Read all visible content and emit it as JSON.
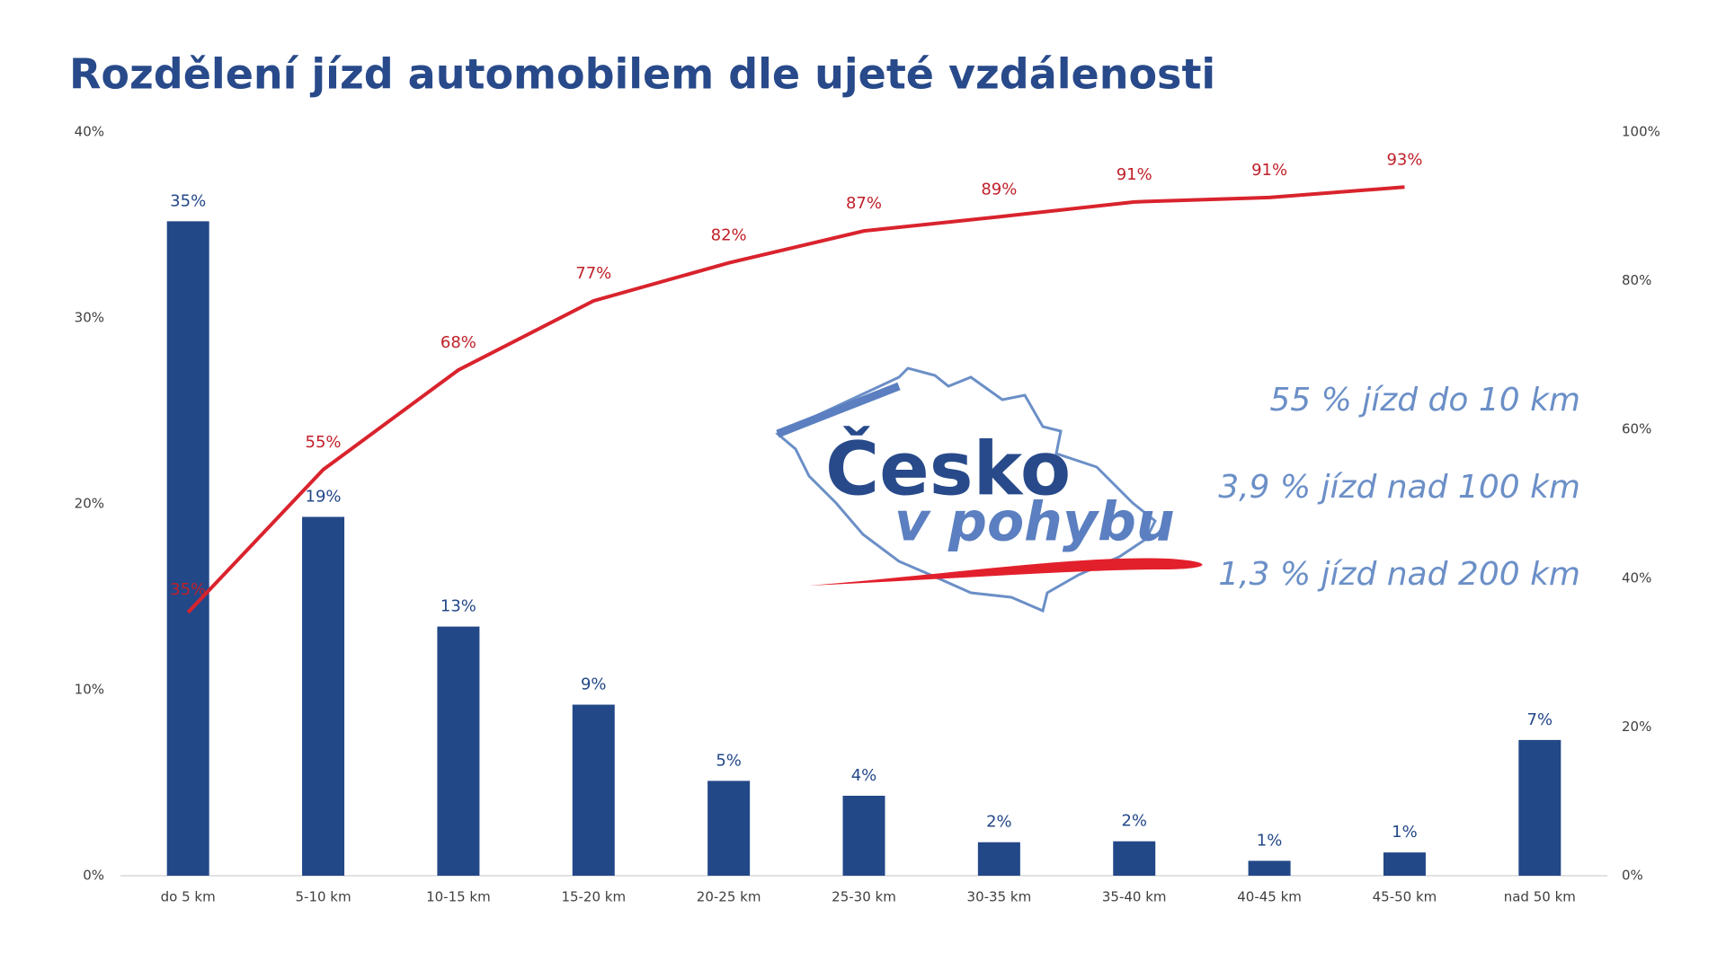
{
  "chart_data": {
    "type": "bar",
    "title": "Rozdělení jízd automobilem dle ujeté vzdálenosti",
    "categories": [
      "do 5 km",
      "5-10 km",
      "10-15 km",
      "15-20 km",
      "20-25 km",
      "25-30 km",
      "30-35 km",
      "35-40 km",
      "40-45 km",
      "45-50 km",
      "nad 50 km"
    ],
    "series": [
      {
        "type": "bar",
        "color": "#234888",
        "values": [
          35.2,
          19.3,
          13.4,
          9.2,
          5.1,
          4.3,
          1.8,
          1.85,
          0.8,
          1.25,
          7.3
        ],
        "value_labels": [
          "35%",
          "19%",
          "13%",
          "9%",
          "5%",
          "4%",
          "2%",
          "2%",
          "1%",
          "1%",
          "7%"
        ]
      },
      {
        "type": "line",
        "axis": "y2",
        "color": "#d9232d",
        "values": [
          35.4,
          54.6,
          68,
          77.3,
          82.4,
          86.7,
          88.6,
          90.6,
          91.2,
          92.6,
          null
        ],
        "value_labels": [
          "35%",
          "55%",
          "68%",
          "77%",
          "82%",
          "87%",
          "89%",
          "91%",
          "91%",
          "93%",
          null
        ]
      }
    ],
    "ylim": [
      0,
      40
    ],
    "yticks": [
      {
        "value": 0,
        "label": "0%"
      },
      {
        "value": 10,
        "label": "10%"
      },
      {
        "value": 20,
        "label": "20%"
      },
      {
        "value": 30,
        "label": "30%"
      },
      {
        "value": 40,
        "label": "40%"
      }
    ],
    "y2lim": [
      0,
      100
    ],
    "y2ticks": [
      {
        "value": 0,
        "label": "0%"
      },
      {
        "value": 20,
        "label": "20%"
      },
      {
        "value": 40,
        "label": "40%"
      },
      {
        "value": 60,
        "label": "60%"
      },
      {
        "value": 80,
        "label": "80%"
      },
      {
        "value": 100,
        "label": "100%"
      }
    ],
    "annotations": [
      "55 % jízd do 10 km",
      "3,9 % jízd nad 100 km",
      "1,3 % jízd nad 200 km"
    ],
    "logo": [
      "Česko",
      "v pohybu"
    ]
  }
}
